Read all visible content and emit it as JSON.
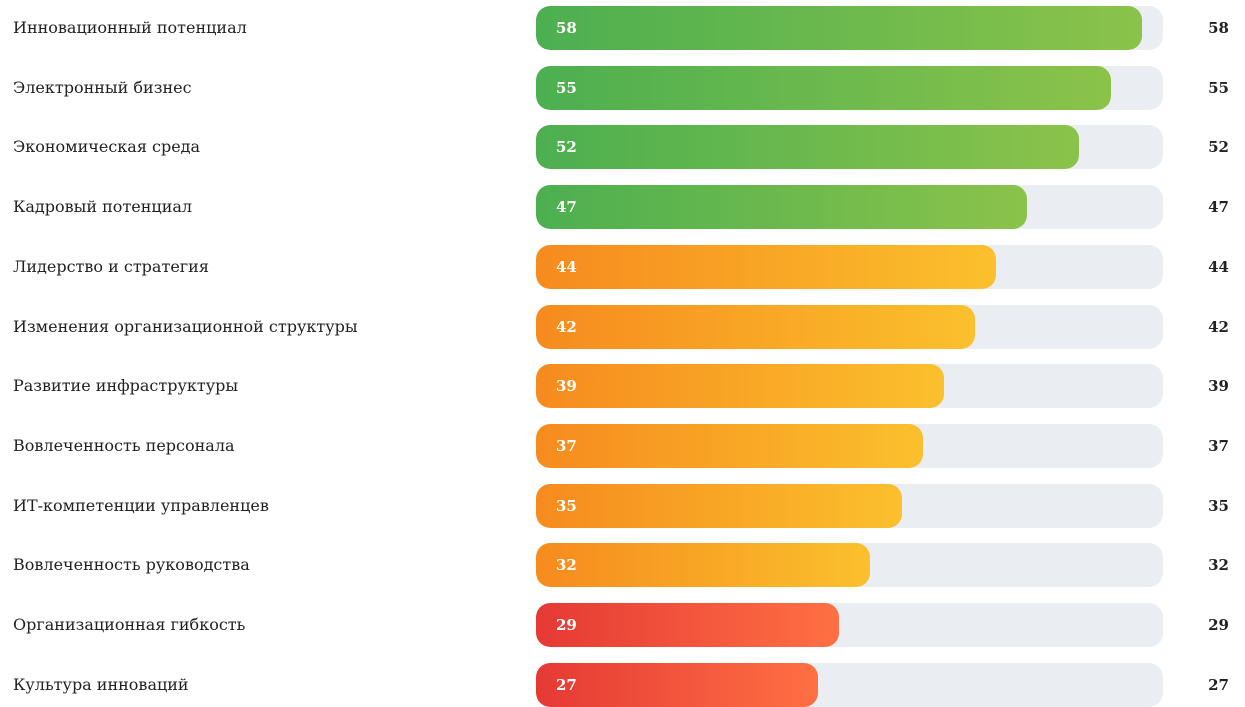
{
  "chart_data": {
    "type": "bar",
    "orientation": "horizontal",
    "title": "",
    "xlabel": "",
    "ylabel": "",
    "xlim": [
      0,
      60
    ],
    "grid": false,
    "categories": [
      "Инновационный потенциал",
      "Электронный бизнес",
      "Экономическая среда",
      "Кадровый потенциал",
      "Лидерство и стратегия",
      "Изменения организационной структуры",
      "Развитие инфраструктуры",
      "Вовлеченность персонала",
      "ИТ-компетенции управленцев",
      "Вовлеченность руководства",
      "Организационная гибкость",
      "Культура инноваций"
    ],
    "values": [
      58,
      55,
      52,
      47,
      44,
      42,
      39,
      37,
      35,
      32,
      29,
      27
    ],
    "value_labels": [
      "58",
      "55",
      "52",
      "47",
      "44",
      "42",
      "39",
      "37",
      "35",
      "32",
      "29",
      "27"
    ],
    "bar_color_bands": [
      "green",
      "green",
      "green",
      "green",
      "orange",
      "orange",
      "orange",
      "orange",
      "orange",
      "orange",
      "red",
      "red"
    ],
    "colors": {
      "green": [
        "#4caf50",
        "#8bc34a"
      ],
      "orange": [
        "#f68b1e",
        "#fbc02d"
      ],
      "red": [
        "#e53935",
        "#ff7043"
      ],
      "track": "#eaedf2"
    }
  }
}
